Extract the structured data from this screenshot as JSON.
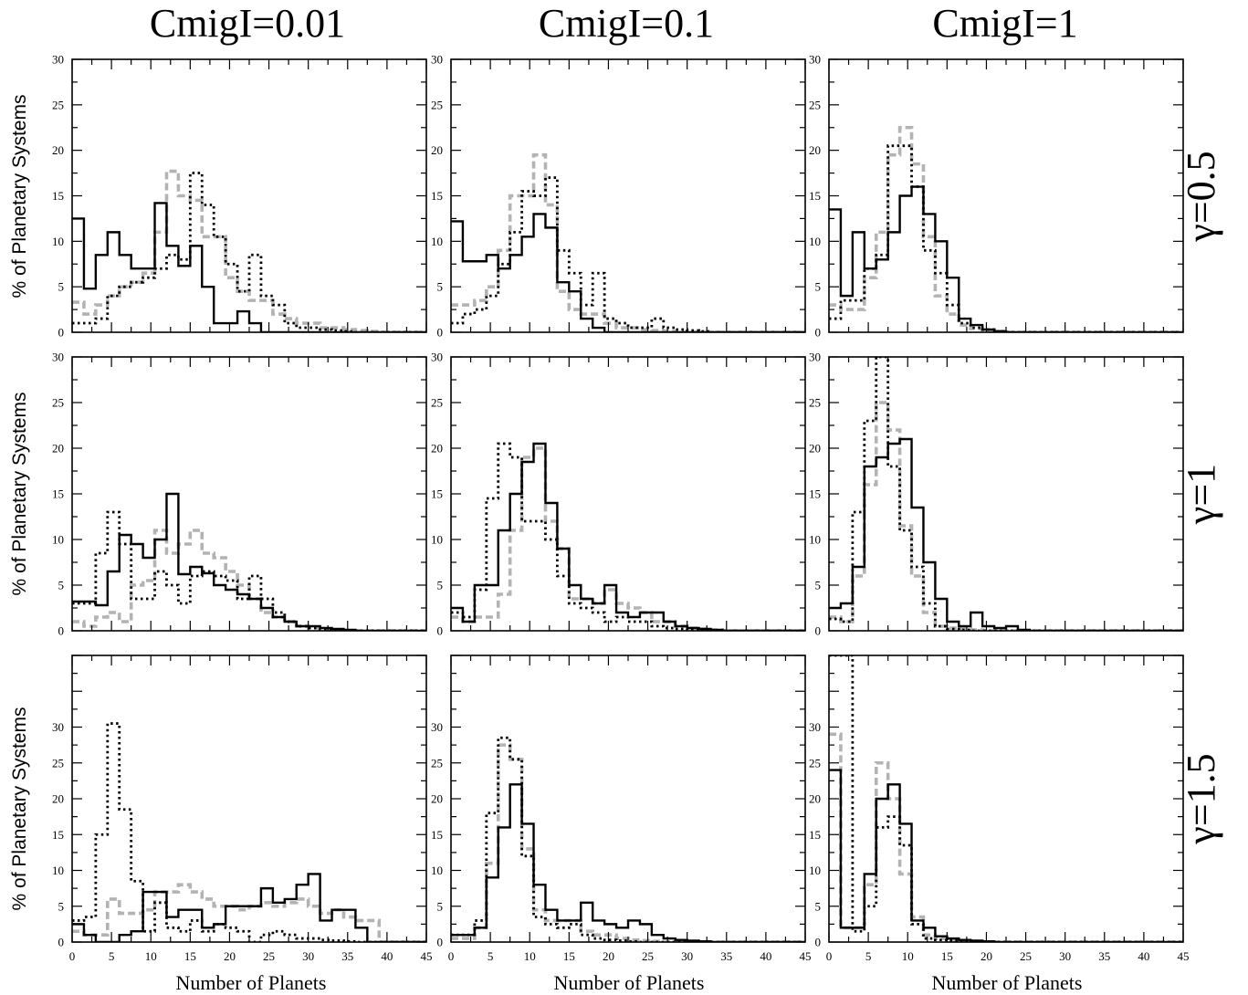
{
  "figure": {
    "col_titles": [
      "CmigI=0.01",
      "CmigI=0.1",
      "CmigI=1"
    ],
    "row_titles": [
      "γ=0.5",
      "γ=1",
      "γ=1.5"
    ],
    "xlabel": "Number of Planets",
    "ylabel": "% of Planetary Systems",
    "colors": {
      "solid": "#000000",
      "dashed_gray": "#b3b3b3",
      "dotted": "#000000"
    }
  },
  "chart_data": [
    {
      "type": "histogram",
      "row": 0,
      "col": 0,
      "title": "CmigI=0.01 γ=0.5",
      "xlim": [
        0,
        45
      ],
      "ylim": [
        0,
        30
      ],
      "bin_width": 1.5,
      "x_ticks": [
        0,
        5,
        10,
        15,
        20,
        25,
        30,
        35,
        40,
        45
      ],
      "y_ticks": [
        0,
        5,
        10,
        15,
        20,
        25,
        30
      ],
      "series": [
        {
          "style": "solid",
          "values": [
            12.5,
            4.8,
            8.5,
            11,
            8.5,
            7,
            7,
            14.2,
            9.5,
            7.3,
            9.5,
            5,
            1,
            1,
            2.3,
            1,
            0,
            0,
            0,
            0,
            0,
            0,
            0,
            0,
            0,
            0,
            0,
            0,
            0,
            0
          ]
        },
        {
          "style": "gray-dashed",
          "values": [
            3.3,
            2,
            3,
            4,
            5,
            5.5,
            6.5,
            11,
            17.7,
            15,
            14.5,
            10.5,
            10.5,
            6,
            4.5,
            3.5,
            3.5,
            2,
            1.5,
            1,
            1,
            0.5,
            0.5,
            0.3,
            0.2,
            0.1,
            0,
            0,
            0,
            0
          ]
        },
        {
          "style": "dotted",
          "values": [
            1,
            1,
            1.5,
            4,
            5,
            5.5,
            6,
            7,
            8.5,
            8,
            17.5,
            14,
            10.5,
            7.5,
            4.5,
            8.5,
            4,
            3,
            1,
            0.5,
            0.5,
            0.3,
            0.2,
            0.1,
            0,
            0,
            0,
            0,
            0,
            0
          ]
        }
      ]
    },
    {
      "type": "histogram",
      "row": 0,
      "col": 1,
      "title": "CmigI=0.1 γ=0.5",
      "xlim": [
        0,
        45
      ],
      "ylim": [
        0,
        30
      ],
      "bin_width": 1.5,
      "x_ticks": [
        0,
        5,
        10,
        15,
        20,
        25,
        30,
        35,
        40,
        45
      ],
      "y_ticks": [
        0,
        5,
        10,
        15,
        20,
        25,
        30
      ],
      "series": [
        {
          "style": "solid",
          "values": [
            12.2,
            7.8,
            7.8,
            8.5,
            7,
            8.5,
            10.5,
            13,
            11.5,
            5.5,
            4.5,
            1.5,
            0.5,
            0,
            0,
            0,
            0,
            0,
            0,
            0,
            0,
            0,
            0,
            0,
            0,
            0,
            0,
            0,
            0,
            0
          ]
        },
        {
          "style": "gray-dashed",
          "values": [
            3,
            3,
            3.5,
            5,
            9,
            15,
            15,
            19.5,
            14,
            4.5,
            2.5,
            2,
            2,
            1,
            0.5,
            0.5,
            0.3,
            0.2,
            0.1,
            0,
            0,
            0,
            0,
            0,
            0,
            0,
            0,
            0,
            0,
            0
          ]
        },
        {
          "style": "dotted",
          "values": [
            1,
            2,
            2.5,
            4,
            7.5,
            11,
            15.5,
            15,
            17,
            9,
            6.5,
            3,
            6.5,
            1.5,
            1,
            0.5,
            0.5,
            1.5,
            0.5,
            0.3,
            0.2,
            0.1,
            0,
            0,
            0,
            0,
            0,
            0,
            0,
            0
          ]
        }
      ]
    },
    {
      "type": "histogram",
      "row": 0,
      "col": 2,
      "title": "CmigI=1 γ=0.5",
      "xlim": [
        0,
        45
      ],
      "ylim": [
        0,
        30
      ],
      "bin_width": 1.5,
      "x_ticks": [
        0,
        5,
        10,
        15,
        20,
        25,
        30,
        35,
        40,
        45
      ],
      "y_ticks": [
        0,
        5,
        10,
        15,
        20,
        25,
        30
      ],
      "series": [
        {
          "style": "solid",
          "values": [
            13.5,
            4,
            11,
            7,
            8,
            11,
            15,
            16,
            13,
            10,
            6,
            1.5,
            0.8,
            0.3,
            0.1,
            0,
            0,
            0,
            0,
            0,
            0,
            0,
            0,
            0,
            0,
            0,
            0,
            0,
            0,
            0
          ]
        },
        {
          "style": "gray-dashed",
          "values": [
            3,
            2.5,
            2.5,
            6,
            11,
            19.5,
            22.5,
            18.5,
            10.5,
            4,
            2,
            0.8,
            0.4,
            0.2,
            0.1,
            0,
            0,
            0,
            0,
            0,
            0,
            0,
            0,
            0,
            0,
            0,
            0,
            0,
            0,
            0
          ]
        },
        {
          "style": "dotted",
          "values": [
            1.5,
            3.5,
            3.5,
            7,
            8.5,
            20.5,
            20.5,
            16,
            9,
            6.5,
            3,
            1,
            0.5,
            0.3,
            0.1,
            0,
            0,
            0,
            0,
            0,
            0,
            0,
            0,
            0,
            0,
            0,
            0,
            0,
            0,
            0
          ]
        }
      ]
    },
    {
      "type": "histogram",
      "row": 1,
      "col": 0,
      "title": "CmigI=0.01 γ=1",
      "xlim": [
        0,
        45
      ],
      "ylim": [
        0,
        30
      ],
      "bin_width": 1.5,
      "x_ticks": [
        0,
        5,
        10,
        15,
        20,
        25,
        30,
        35,
        40,
        45
      ],
      "y_ticks": [
        0,
        5,
        10,
        15,
        20,
        25,
        30
      ],
      "series": [
        {
          "style": "solid",
          "values": [
            3.2,
            3.2,
            2.8,
            6.5,
            10.5,
            9.5,
            8,
            10,
            15,
            6.2,
            7,
            6.3,
            5,
            4.5,
            4,
            3.5,
            2.5,
            1.5,
            1,
            0.5,
            0.5,
            0.3,
            0.2,
            0.1,
            0,
            0,
            0,
            0,
            0,
            0
          ]
        },
        {
          "style": "gray-dashed",
          "values": [
            1,
            0.5,
            1.5,
            2,
            1,
            5,
            5.5,
            11,
            8.5,
            9.5,
            11,
            8.5,
            8,
            6.5,
            5,
            3.5,
            2,
            1.5,
            1,
            0.5,
            0.3,
            0.2,
            0.1,
            0,
            0,
            0,
            0,
            0,
            0,
            0
          ]
        },
        {
          "style": "dotted",
          "values": [
            3,
            3,
            8.5,
            13,
            9.5,
            3.5,
            3.5,
            6.5,
            5,
            3,
            6,
            6.5,
            6,
            5.5,
            3.5,
            6,
            3.5,
            2,
            1,
            0.5,
            0.3,
            0.2,
            0.1,
            0,
            0,
            0,
            0,
            0,
            0,
            0
          ]
        }
      ]
    },
    {
      "type": "histogram",
      "row": 1,
      "col": 1,
      "title": "CmigI=0.1 γ=1",
      "xlim": [
        0,
        45
      ],
      "ylim": [
        0,
        30
      ],
      "bin_width": 1.5,
      "x_ticks": [
        0,
        5,
        10,
        15,
        20,
        25,
        30,
        35,
        40,
        45
      ],
      "y_ticks": [
        0,
        5,
        10,
        15,
        20,
        25,
        30
      ],
      "series": [
        {
          "style": "solid",
          "values": [
            2.5,
            1,
            5,
            5,
            11,
            15,
            18.5,
            20.5,
            14,
            9,
            5,
            3.5,
            3,
            5,
            2,
            1.5,
            2,
            2,
            1,
            0.5,
            0.3,
            0.2,
            0.1,
            0,
            0,
            0,
            0,
            0,
            0,
            0
          ]
        },
        {
          "style": "gray-dashed",
          "values": [
            1.5,
            1,
            1.5,
            1.5,
            4,
            11,
            19,
            20,
            12,
            9,
            3.5,
            3.5,
            3,
            4.5,
            3,
            2.5,
            2,
            1,
            1,
            0.5,
            0.3,
            0.2,
            0.1,
            0,
            0,
            0,
            0,
            0,
            0,
            0
          ]
        },
        {
          "style": "dotted",
          "values": [
            2,
            1.5,
            4.5,
            14.5,
            20.5,
            19,
            12,
            12,
            10,
            6,
            3,
            2.5,
            2,
            1,
            1.5,
            1,
            1,
            0.5,
            0.3,
            0.2,
            0.1,
            0,
            0,
            0,
            0,
            0,
            0,
            0,
            0,
            0
          ]
        }
      ]
    },
    {
      "type": "histogram",
      "row": 1,
      "col": 2,
      "title": "CmigI=1 γ=1",
      "xlim": [
        0,
        45
      ],
      "ylim": [
        0,
        30
      ],
      "bin_width": 1.5,
      "x_ticks": [
        0,
        5,
        10,
        15,
        20,
        25,
        30,
        35,
        40,
        45
      ],
      "y_ticks": [
        0,
        5,
        10,
        15,
        20,
        25,
        30
      ],
      "series": [
        {
          "style": "solid",
          "values": [
            2.5,
            3,
            7,
            18,
            19,
            20.5,
            21,
            13.5,
            7.5,
            3.5,
            1,
            0.5,
            2,
            0.5,
            0.3,
            0.5,
            0.1,
            0,
            0,
            0,
            0,
            0,
            0,
            0,
            0,
            0,
            0,
            0,
            0,
            0
          ]
        },
        {
          "style": "gray-dashed",
          "values": [
            1.5,
            1,
            6,
            16,
            25,
            22,
            11.5,
            6,
            2,
            0.5,
            0.3,
            0.2,
            0.1,
            0,
            0,
            0,
            0,
            0,
            0,
            0,
            0,
            0,
            0,
            0,
            0,
            0,
            0,
            0,
            0,
            0
          ]
        },
        {
          "style": "dotted",
          "values": [
            1.3,
            1,
            13,
            23,
            31,
            18,
            11,
            7,
            3,
            0.5,
            0.2,
            0.1,
            0,
            0,
            0,
            0,
            0,
            0,
            0,
            0,
            0,
            0,
            0,
            0,
            0,
            0,
            0,
            0,
            0,
            0
          ]
        }
      ]
    },
    {
      "type": "histogram",
      "row": 2,
      "col": 0,
      "title": "CmigI=0.01 γ=1.5",
      "xlim": [
        0,
        45
      ],
      "ylim": [
        0,
        40
      ],
      "bin_width": 1.5,
      "x_ticks": [
        0,
        5,
        10,
        15,
        20,
        25,
        30,
        35,
        40,
        45
      ],
      "y_ticks": [
        0,
        5,
        10,
        15,
        20,
        25,
        30
      ],
      "series": [
        {
          "style": "solid",
          "values": [
            2.5,
            1,
            0,
            0,
            1,
            1.5,
            7,
            7,
            3.5,
            4.5,
            4.5,
            2,
            2.5,
            5,
            5,
            5,
            7.5,
            5.5,
            6,
            8,
            9.5,
            3,
            4.5,
            4.5,
            2,
            0,
            0,
            0,
            0,
            0
          ]
        },
        {
          "style": "gray-dashed",
          "values": [
            1.5,
            1,
            1,
            6,
            4,
            4,
            4.5,
            7,
            7,
            8,
            7,
            6,
            5,
            5,
            4.5,
            5,
            5.5,
            5,
            5.5,
            6,
            5,
            4,
            4.5,
            3.5,
            3,
            3,
            0,
            0,
            0,
            0
          ]
        },
        {
          "style": "dotted",
          "values": [
            3,
            3.5,
            15,
            30.5,
            18.5,
            8.5,
            1.5,
            5.5,
            2,
            1.5,
            3,
            1.5,
            2.5,
            2,
            1.5,
            0,
            1,
            1.5,
            1,
            0.5,
            0.5,
            0.3,
            0.2,
            0.1,
            0,
            0,
            0,
            0,
            0,
            0
          ]
        }
      ]
    },
    {
      "type": "histogram",
      "row": 2,
      "col": 1,
      "title": "CmigI=0.1 γ=1.5",
      "xlim": [
        0,
        45
      ],
      "ylim": [
        0,
        40
      ],
      "bin_width": 1.5,
      "x_ticks": [
        0,
        5,
        10,
        15,
        20,
        25,
        30,
        35,
        40,
        45
      ],
      "y_ticks": [
        0,
        5,
        10,
        15,
        20,
        25,
        30
      ],
      "series": [
        {
          "style": "solid",
          "values": [
            1,
            1,
            2,
            9,
            16,
            22,
            16.5,
            8,
            4.5,
            3,
            3,
            5.5,
            3,
            2.5,
            2,
            3,
            2.5,
            1,
            0.5,
            0.3,
            0.2,
            0.1,
            0,
            0,
            0,
            0,
            0,
            0,
            0,
            0
          ]
        },
        {
          "style": "gray-dashed",
          "values": [
            0.5,
            0.5,
            2,
            11,
            27.5,
            25.5,
            13,
            4.5,
            3,
            3,
            3,
            1.5,
            1,
            1,
            0.5,
            0.3,
            0.2,
            0.1,
            0,
            0,
            0,
            0,
            0,
            0,
            0,
            0,
            0,
            0,
            0,
            0
          ]
        },
        {
          "style": "dotted",
          "values": [
            1,
            1,
            3,
            18,
            28.5,
            25.5,
            12,
            3.5,
            2.5,
            2,
            2.5,
            1,
            0.5,
            0.3,
            0.2,
            0.1,
            0,
            0,
            0,
            0,
            0,
            0,
            0,
            0,
            0,
            0,
            0,
            0,
            0,
            0
          ]
        }
      ]
    },
    {
      "type": "histogram",
      "row": 2,
      "col": 2,
      "title": "CmigI=1 γ=1.5",
      "xlim": [
        0,
        45
      ],
      "ylim": [
        0,
        40
      ],
      "bin_width": 1.5,
      "x_ticks": [
        0,
        5,
        10,
        15,
        20,
        25,
        30,
        35,
        40,
        45
      ],
      "y_ticks": [
        0,
        5,
        10,
        15,
        20,
        25,
        30
      ],
      "series": [
        {
          "style": "solid",
          "values": [
            24,
            2,
            2,
            9.5,
            20,
            22,
            16.5,
            3,
            2,
            0.8,
            0.5,
            0.3,
            0.2,
            0.1,
            0,
            0,
            0,
            0,
            0,
            0,
            0,
            0,
            0,
            0,
            0,
            0,
            0,
            0,
            0,
            0
          ]
        },
        {
          "style": "gray-dashed",
          "values": [
            29,
            2,
            2,
            8,
            25,
            20,
            9.5,
            3.5,
            1,
            0.5,
            0.3,
            0.2,
            0.1,
            0,
            0,
            0,
            0,
            0,
            0,
            0,
            0,
            0,
            0,
            0,
            0,
            0,
            0,
            0,
            0,
            0
          ]
        },
        {
          "style": "dotted",
          "values": [
            40,
            40,
            1.5,
            5,
            16,
            17.5,
            13.5,
            2.5,
            0.5,
            0.3,
            0.2,
            0.1,
            0,
            0,
            0,
            0,
            0,
            0,
            0,
            0,
            0,
            0,
            0,
            0,
            0,
            0,
            0,
            0,
            0,
            0
          ]
        }
      ]
    }
  ]
}
